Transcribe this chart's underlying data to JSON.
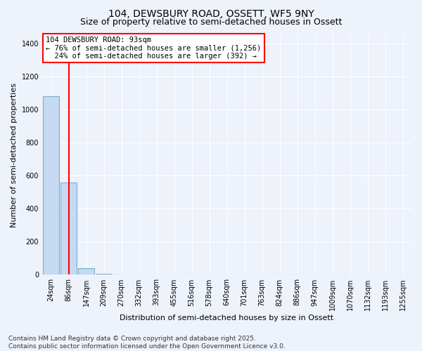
{
  "title": "104, DEWSBURY ROAD, OSSETT, WF5 9NY",
  "subtitle": "Size of property relative to semi-detached houses in Ossett",
  "xlabel": "Distribution of semi-detached houses by size in Ossett",
  "ylabel": "Number of semi-detached properties",
  "categories": [
    "24sqm",
    "86sqm",
    "147sqm",
    "209sqm",
    "270sqm",
    "332sqm",
    "393sqm",
    "455sqm",
    "516sqm",
    "578sqm",
    "640sqm",
    "701sqm",
    "763sqm",
    "824sqm",
    "886sqm",
    "947sqm",
    "1009sqm",
    "1070sqm",
    "1132sqm",
    "1193sqm",
    "1255sqm"
  ],
  "values": [
    1080,
    560,
    40,
    5,
    0,
    0,
    0,
    0,
    0,
    0,
    0,
    0,
    0,
    0,
    0,
    0,
    0,
    0,
    0,
    0,
    0
  ],
  "bar_color": "#c5d9f0",
  "bar_edge_color": "#7aafd4",
  "vline_x": 1.0,
  "vline_color": "red",
  "annotation_line1": "104 DEWSBURY ROAD: 93sqm",
  "annotation_line2": "← 76% of semi-detached houses are smaller (1,256)",
  "annotation_line3": "  24% of semi-detached houses are larger (392) →",
  "annotation_box_color": "white",
  "annotation_box_edge": "red",
  "ylim": [
    0,
    1450
  ],
  "yticks": [
    0,
    200,
    400,
    600,
    800,
    1000,
    1200,
    1400
  ],
  "footer_line1": "Contains HM Land Registry data © Crown copyright and database right 2025.",
  "footer_line2": "Contains public sector information licensed under the Open Government Licence v3.0.",
  "bg_color": "#edf2fb",
  "grid_color": "white",
  "title_fontsize": 10,
  "subtitle_fontsize": 9,
  "axis_label_fontsize": 8,
  "tick_fontsize": 7,
  "annotation_fontsize": 7.5,
  "footer_fontsize": 6.5
}
